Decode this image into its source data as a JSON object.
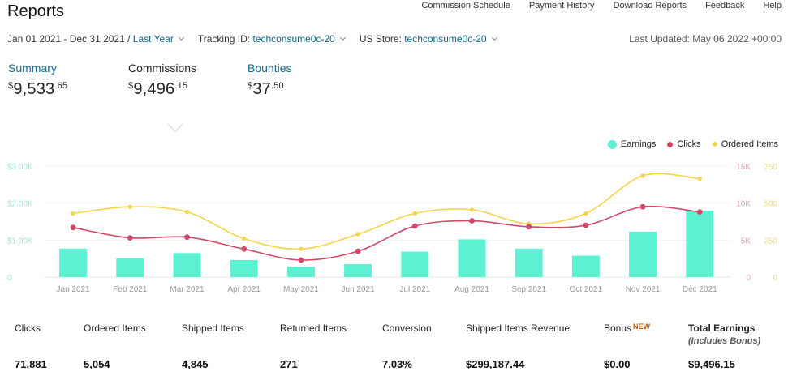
{
  "header": {
    "title": "Reports",
    "nav": [
      "Commission Schedule",
      "Payment History",
      "Download Reports",
      "Feedback",
      "Help"
    ]
  },
  "filters": {
    "date_range": "Jan 01 2021 - Dec 31 2021 /",
    "date_preset": "Last Year",
    "tracking_label": "Tracking ID:",
    "tracking_value": "techconsume0c-20",
    "store_label": "US Store:",
    "store_value": "techconsume0c-20",
    "last_updated": "Last Updated: May 06 2022 +00:00"
  },
  "summary_cards": [
    {
      "label": "Summary",
      "dollars": "9,533",
      "cents": ".65",
      "currency": "$"
    },
    {
      "label": "Commissions",
      "dollars": "9,496",
      "cents": ".15",
      "currency": "$"
    },
    {
      "label": "Bounties",
      "dollars": "37",
      "cents": ".50",
      "currency": "$"
    }
  ],
  "legend": [
    {
      "label": "Earnings",
      "color": "#5ef0d2"
    },
    {
      "label": "Clicks",
      "color": "#d04a68"
    },
    {
      "label": "Ordered Items",
      "color": "#f5d448"
    }
  ],
  "chart_data": {
    "type": "bar+line",
    "categories": [
      "Jan 2021",
      "Feb 2021",
      "Mar 2021",
      "Apr 2021",
      "May 2021",
      "Jun 2021",
      "Jul 2021",
      "Aug 2021",
      "Sep 2021",
      "Oct 2021",
      "Nov 2021",
      "Dec 2021"
    ],
    "left_axis": {
      "ticks": [
        "$3.00K",
        "$2.00K",
        "$1.00K",
        "0"
      ],
      "max": 3000
    },
    "right_axis_1": {
      "ticks": [
        "15K",
        "10K",
        "5K",
        "0"
      ],
      "max": 15000
    },
    "right_axis_2": {
      "ticks": [
        "750",
        "500",
        "250",
        "0"
      ],
      "max": 750
    },
    "series": [
      {
        "name": "Earnings",
        "axis": "left",
        "values": [
          770,
          510,
          650,
          460,
          280,
          350,
          690,
          1020,
          770,
          580,
          1230,
          1790
        ]
      },
      {
        "name": "Clicks",
        "axis": "right_1",
        "values": [
          6700,
          5300,
          5400,
          3800,
          2300,
          3500,
          6900,
          7600,
          6800,
          7000,
          9500,
          8800
        ]
      },
      {
        "name": "Ordered Items",
        "axis": "right_2",
        "values": [
          430,
          475,
          440,
          260,
          190,
          290,
          430,
          455,
          360,
          430,
          685,
          665
        ]
      }
    ],
    "colors": {
      "Earnings": "#5ef0d2",
      "Clicks": "#d04a68",
      "Ordered Items": "#f5d448"
    }
  },
  "stats": [
    {
      "label": "Clicks",
      "value": "71,881"
    },
    {
      "label": "Ordered Items",
      "value": "5,054"
    },
    {
      "label": "Shipped Items",
      "value": "4,845"
    },
    {
      "label": "Returned Items",
      "value": "271"
    },
    {
      "label": "Conversion",
      "value": "7.03%"
    },
    {
      "label": "Shipped Items Revenue",
      "value": "$299,187.44"
    },
    {
      "label": "Bonus",
      "badge": "NEW",
      "value": "$0.00"
    },
    {
      "label": "Total Earnings",
      "sub": "(Includes Bonus)",
      "value": "$9,496.15"
    }
  ]
}
